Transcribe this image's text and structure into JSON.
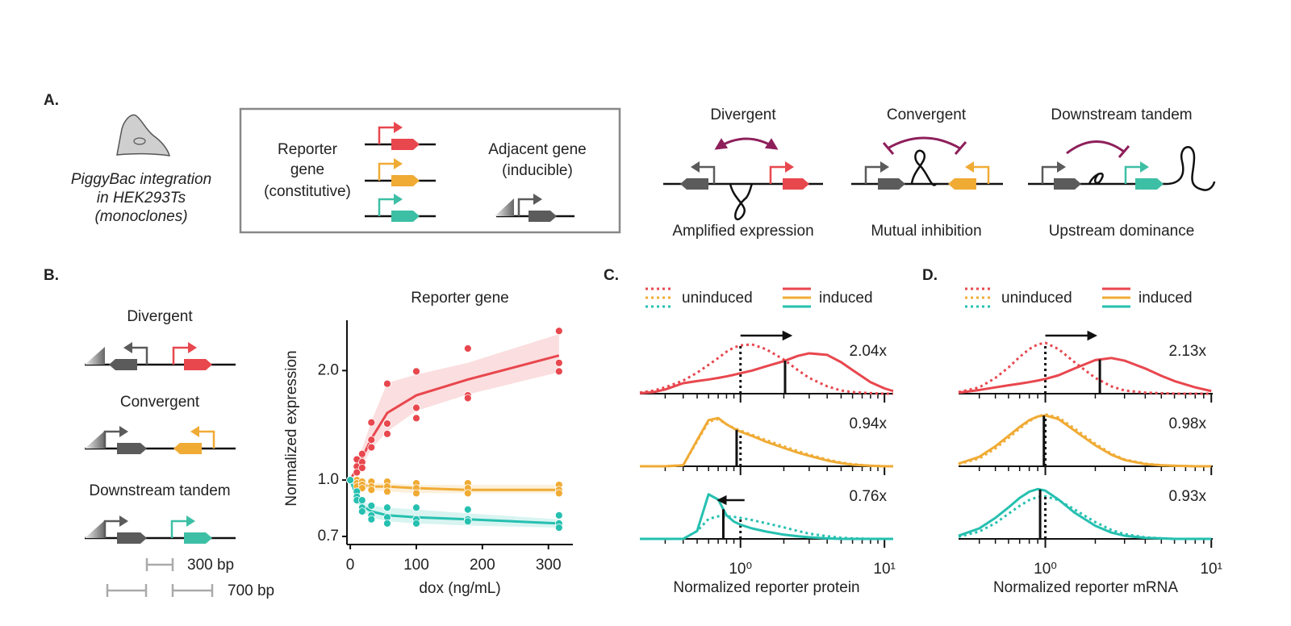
{
  "panel_a": {
    "label": "A.",
    "cell_caption": [
      "PiggyBac integration",
      "in HEK293Ts",
      "(monoclones)"
    ],
    "legend": {
      "reporter": [
        "Reporter",
        "gene",
        "(constitutive)"
      ],
      "adjacent": [
        "Adjacent gene",
        "(inducible)"
      ]
    },
    "architectures": [
      {
        "name": "Divergent",
        "color": "#e8474e",
        "caption": "Amplified expression"
      },
      {
        "name": "Convergent",
        "color": "#f0ab35",
        "caption": "Mutual inhibition"
      },
      {
        "name": "Downstream tandem",
        "color": "#3dbfa5",
        "caption": "Upstream dominance"
      }
    ]
  },
  "panel_b": {
    "label": "B.",
    "constructs": [
      {
        "name": "Divergent",
        "color": "#e8474e"
      },
      {
        "name": "Convergent",
        "color": "#f0ab35"
      },
      {
        "name": "Downstream tandem",
        "color": "#3dbfa5"
      }
    ],
    "scale_bars": [
      "300 bp",
      "700 bp"
    ]
  },
  "chart_data": [
    {
      "type": "line",
      "title": "Reporter gene",
      "xlabel": "dox (ng/mL)",
      "ylabel": "Normalized expression",
      "log_y": true,
      "x": [
        0,
        10,
        18,
        32,
        56,
        100,
        178,
        316
      ],
      "xlim": [
        -5,
        337
      ],
      "ylim": [
        0.665,
        2.75
      ],
      "xticks": [
        0,
        100,
        200,
        300
      ],
      "yticks": [
        0.7,
        {
          "value": 1,
          "label": "1.0"
        },
        {
          "value": 2,
          "label": "2.0"
        }
      ],
      "series": [
        {
          "color": "#e8474e",
          "values": [
            1,
            1.08,
            1.15,
            1.3,
            1.53,
            1.71,
            1.89,
            2.2
          ],
          "ci_low": [
            1,
            1.05,
            1.1,
            1.22,
            1.36,
            1.55,
            1.72,
            1.98
          ],
          "ci_high": [
            1,
            1.12,
            1.22,
            1.45,
            1.85,
            1.95,
            2.1,
            2.52
          ],
          "points": [
            [
              1,
              1,
              1
            ],
            [
              1.14,
              1.09,
              1.05
            ],
            [
              1.18,
              1.12,
              1.08
            ],
            [
              1.44,
              1.29,
              1.23
            ],
            [
              1.84,
              1.43,
              1.34
            ],
            [
              1.99,
              1.58,
              1.48
            ],
            [
              2.3,
              1.71,
              1.68
            ],
            [
              2.57,
              2.1,
              1.99
            ]
          ]
        },
        {
          "color": "#f0ab35",
          "values": [
            1,
            0.98,
            0.97,
            0.96,
            0.96,
            0.95,
            0.94,
            0.94
          ],
          "ci_low": [
            1,
            0.96,
            0.95,
            0.94,
            0.93,
            0.92,
            0.92,
            0.92
          ],
          "ci_high": [
            1,
            1,
            0.99,
            0.98,
            0.98,
            0.97,
            0.97,
            0.97
          ],
          "points": [
            [
              1,
              1,
              1
            ],
            [
              1,
              0.98,
              0.96
            ],
            [
              0.99,
              0.97,
              0.95
            ],
            [
              0.99,
              0.96,
              0.94
            ],
            [
              0.99,
              0.96,
              0.93
            ],
            [
              0.98,
              0.95,
              0.92
            ],
            [
              0.98,
              0.95,
              0.92
            ],
            [
              0.97,
              0.94,
              0.92
            ]
          ]
        },
        {
          "color": "#26c0b0",
          "values": [
            1,
            0.9,
            0.85,
            0.82,
            0.8,
            0.79,
            0.78,
            0.76
          ],
          "ci_low": [
            1,
            0.87,
            0.82,
            0.79,
            0.77,
            0.76,
            0.75,
            0.74
          ],
          "ci_high": [
            1,
            0.93,
            0.88,
            0.85,
            0.84,
            0.83,
            0.81,
            0.78
          ],
          "points": [
            [
              1,
              1,
              1
            ],
            [
              0.93,
              0.9,
              0.88
            ],
            [
              0.88,
              0.84,
              0.82
            ],
            [
              0.85,
              0.8,
              0.78
            ],
            [
              0.84,
              0.79,
              0.76
            ],
            [
              0.84,
              0.78,
              0.76
            ],
            [
              0.83,
              0.78,
              0.77
            ],
            [
              0.8,
              0.76,
              0.74
            ]
          ]
        }
      ]
    },
    {
      "type": "density",
      "label": "C.",
      "xlabel": "Normalized reporter protein",
      "log_x": true,
      "xlim": [
        0.2,
        11.5
      ],
      "ylim": [
        0,
        1
      ],
      "xticks": [
        {
          "value": 1,
          "label": "10⁰"
        },
        {
          "value": 10,
          "label": "10¹"
        }
      ],
      "minor_xticks": [
        0.3,
        0.4,
        0.5,
        0.6,
        0.7,
        0.8,
        0.9,
        2,
        3,
        4,
        5,
        6,
        7,
        8,
        9
      ],
      "x": [
        0.2,
        0.25,
        0.3,
        0.4,
        0.5,
        0.6,
        0.7,
        0.8,
        0.9,
        1,
        1.2,
        1.5,
        2,
        2.5,
        3,
        4,
        5,
        6,
        8,
        10,
        11.5
      ],
      "series": [
        {
          "name": "uninduced",
          "style": "dotted"
        },
        {
          "name": "induced",
          "style": "solid"
        }
      ],
      "panels": [
        {
          "color": "#e8474e",
          "uninduced": [
            0.02,
            0.06,
            0.12,
            0.25,
            0.4,
            0.55,
            0.68,
            0.8,
            0.88,
            0.92,
            0.94,
            0.85,
            0.65,
            0.45,
            0.3,
            0.14,
            0.06,
            0.03,
            0.01,
            0,
            0
          ],
          "induced": [
            0.01,
            0.03,
            0.08,
            0.2,
            0.24,
            0.27,
            0.3,
            0.33,
            0.36,
            0.39,
            0.44,
            0.52,
            0.62,
            0.72,
            0.77,
            0.74,
            0.6,
            0.45,
            0.22,
            0.1,
            0.05
          ],
          "medians": [
            1,
            2.04
          ],
          "fold_label": "2.04x",
          "arrow": "right"
        },
        {
          "color": "#f0ab35",
          "uninduced": [
            0,
            0,
            0,
            0.02,
            0.48,
            0.85,
            0.9,
            0.8,
            0.73,
            0.68,
            0.6,
            0.5,
            0.38,
            0.29,
            0.22,
            0.13,
            0.07,
            0.04,
            0.01,
            0,
            0
          ],
          "induced": [
            0,
            0,
            0,
            0.02,
            0.5,
            0.88,
            0.92,
            0.8,
            0.72,
            0.66,
            0.58,
            0.47,
            0.35,
            0.26,
            0.2,
            0.11,
            0.06,
            0.03,
            0.01,
            0,
            0
          ],
          "medians": [
            1,
            0.94
          ],
          "fold_label": "0.94x"
        },
        {
          "color": "#26c0b0",
          "uninduced": [
            0,
            0,
            0,
            0,
            0.15,
            0.38,
            0.43,
            0.43,
            0.42,
            0.4,
            0.36,
            0.3,
            0.22,
            0.15,
            0.1,
            0.05,
            0.02,
            0.01,
            0,
            0,
            0
          ],
          "induced": [
            0,
            0,
            0,
            0,
            0.15,
            0.85,
            0.75,
            0.45,
            0.33,
            0.27,
            0.2,
            0.14,
            0.08,
            0.05,
            0.03,
            0.01,
            0,
            0,
            0,
            0,
            0
          ],
          "medians": [
            1,
            0.76
          ],
          "fold_label": "0.76x",
          "arrow": "left"
        }
      ]
    },
    {
      "type": "density",
      "label": "D.",
      "xlabel": "Normalized reporter mRNA",
      "log_x": true,
      "xlim": [
        0.3,
        10.2
      ],
      "ylim": [
        0,
        1
      ],
      "xticks": [
        {
          "value": 1,
          "label": "10⁰"
        },
        {
          "value": 10,
          "label": "10¹"
        }
      ],
      "minor_xticks": [
        0.4,
        0.5,
        0.6,
        0.7,
        0.8,
        0.9,
        2,
        3,
        4,
        5,
        6,
        7,
        8,
        9
      ],
      "x": [
        0.3,
        0.4,
        0.5,
        0.6,
        0.7,
        0.8,
        0.9,
        1,
        1.2,
        1.5,
        2,
        2.5,
        3,
        4,
        5,
        6,
        8,
        10
      ],
      "series": [
        {
          "name": "uninduced",
          "style": "dotted"
        },
        {
          "name": "induced",
          "style": "solid"
        }
      ],
      "panels": [
        {
          "color": "#e8474e",
          "uninduced": [
            0.03,
            0.12,
            0.3,
            0.5,
            0.7,
            0.85,
            0.94,
            0.97,
            0.85,
            0.6,
            0.3,
            0.14,
            0.06,
            0.02,
            0.01,
            0,
            0,
            0
          ],
          "induced": [
            0.02,
            0.07,
            0.12,
            0.16,
            0.19,
            0.22,
            0.25,
            0.28,
            0.35,
            0.48,
            0.64,
            0.68,
            0.63,
            0.48,
            0.34,
            0.24,
            0.12,
            0.05
          ],
          "medians": [
            1,
            2.13
          ],
          "fold_label": "2.13x",
          "arrow": "right"
        },
        {
          "color": "#f0ab35",
          "uninduced": [
            0.04,
            0.15,
            0.34,
            0.54,
            0.72,
            0.86,
            0.95,
            0.99,
            0.93,
            0.72,
            0.43,
            0.24,
            0.13,
            0.05,
            0.02,
            0.01,
            0,
            0
          ],
          "induced": [
            0.05,
            0.18,
            0.38,
            0.58,
            0.75,
            0.88,
            0.95,
            0.97,
            0.9,
            0.68,
            0.4,
            0.22,
            0.12,
            0.04,
            0.02,
            0.01,
            0,
            0
          ],
          "medians": [
            1,
            0.98
          ],
          "fold_label": "0.98x"
        },
        {
          "color": "#26c0b0",
          "uninduced": [
            0.04,
            0.14,
            0.3,
            0.48,
            0.63,
            0.74,
            0.8,
            0.81,
            0.74,
            0.56,
            0.32,
            0.17,
            0.09,
            0.03,
            0.01,
            0,
            0,
            0
          ],
          "induced": [
            0.06,
            0.2,
            0.4,
            0.6,
            0.78,
            0.9,
            0.95,
            0.92,
            0.75,
            0.5,
            0.25,
            0.12,
            0.06,
            0.02,
            0.01,
            0,
            0,
            0
          ],
          "medians": [
            1,
            0.93
          ],
          "fold_label": "0.93x"
        }
      ]
    }
  ]
}
